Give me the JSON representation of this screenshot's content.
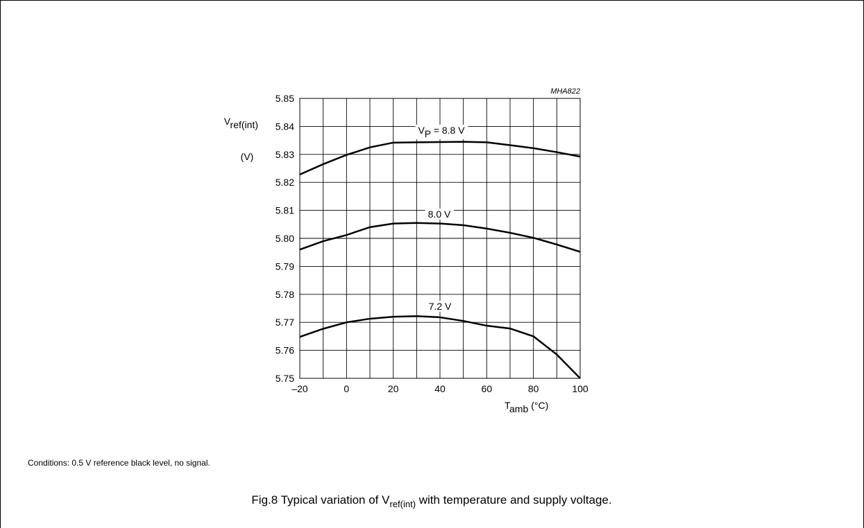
{
  "chart_data": {
    "type": "line",
    "code": "MHA822",
    "y_label": {
      "base": "V",
      "sub": "ref(int)",
      "unit": "(V)"
    },
    "x_label": {
      "base": "T",
      "sub": "amb",
      "unit": "(°C)"
    },
    "x": [
      -20,
      -10,
      0,
      10,
      20,
      30,
      40,
      50,
      60,
      70,
      80,
      90,
      100
    ],
    "series": [
      {
        "name_parts": [
          "V",
          "P",
          " = 8.8 V"
        ],
        "color": "#000000",
        "values": [
          5.8228,
          5.8265,
          5.8298,
          5.8325,
          5.8342,
          5.8343,
          5.8344,
          5.8345,
          5.8343,
          5.8333,
          5.8322,
          5.8308,
          5.8292
        ]
      },
      {
        "name_parts": [
          "8.0 V"
        ],
        "color": "#000000",
        "values": [
          5.796,
          5.799,
          5.8012,
          5.804,
          5.8053,
          5.8055,
          5.8053,
          5.8047,
          5.8035,
          5.802,
          5.8002,
          5.7978,
          5.7952
        ]
      },
      {
        "name_parts": [
          "7.2 V"
        ],
        "color": "#000000",
        "values": [
          5.7648,
          5.7677,
          5.77,
          5.7713,
          5.772,
          5.7722,
          5.7718,
          5.7705,
          5.7688,
          5.7678,
          5.765,
          5.7585,
          5.75
        ]
      }
    ],
    "xlim": [
      -20,
      100
    ],
    "xticks": [
      {
        "value": -20,
        "label": "–20"
      },
      0,
      20,
      40,
      60,
      80,
      100
    ],
    "xgrid_minor": [
      -10,
      10,
      30,
      50,
      70,
      90
    ],
    "ylim": [
      5.75,
      5.85
    ],
    "yticks": [
      5.75,
      5.76,
      5.77,
      5.78,
      5.79,
      {
        "value": 5.8,
        "label": "5.80"
      },
      5.81,
      5.82,
      5.83,
      5.84,
      5.85
    ],
    "grid": true,
    "note": "Conditions: 0.5 V reference black level, no signal.",
    "caption": {
      "before": "Fig.8  Typical variation of V",
      "sub": "ref(int)",
      "after": " with temperature and supply voltage."
    }
  }
}
